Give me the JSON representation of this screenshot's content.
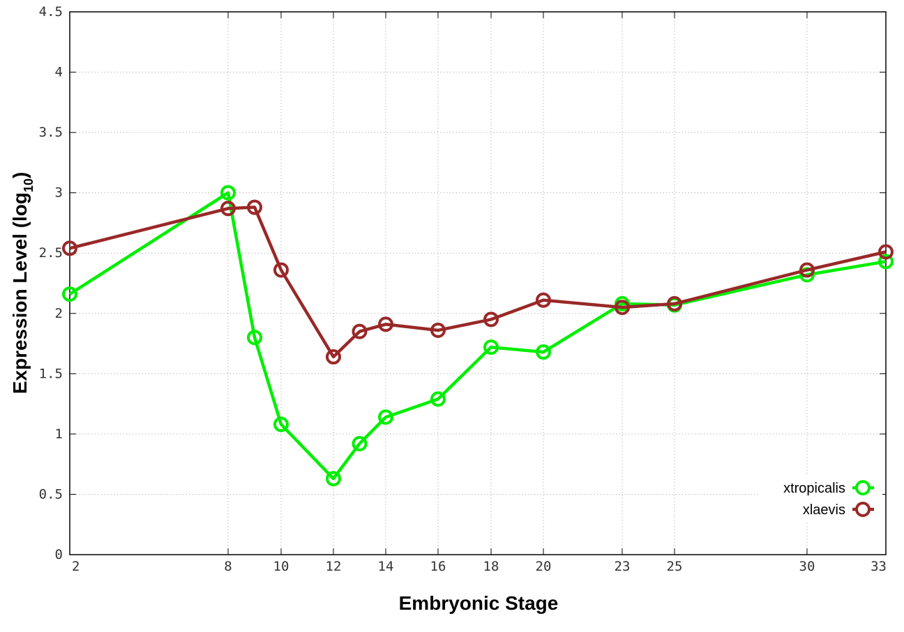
{
  "chart_data": {
    "type": "line",
    "title": "",
    "xlabel": "Embryonic Stage",
    "ylabel_main": "Expression Level (log",
    "ylabel_sub": "10",
    "ylabel_close": ")",
    "x": [
      2,
      8,
      9,
      10,
      12,
      13,
      14,
      16,
      18,
      20,
      23,
      25,
      30,
      33
    ],
    "x_tick_labels": [
      "2",
      "8",
      "10",
      "12",
      "14",
      "16",
      "18",
      "20",
      "23",
      "25",
      "30",
      "33"
    ],
    "y_tick_labels": [
      "0",
      "0.5",
      "1",
      "1.5",
      "2",
      "2.5",
      "3",
      "3.5",
      "4",
      "4.5"
    ],
    "ylim": [
      0,
      4.5
    ],
    "grid": true,
    "legend_position": "bottom-right",
    "series": [
      {
        "name": "xtropicalis",
        "color": "#00ee00",
        "values": [
          2.16,
          3.0,
          1.8,
          1.08,
          0.63,
          0.92,
          1.14,
          1.29,
          1.72,
          1.68,
          2.08,
          2.07,
          2.32,
          2.43
        ]
      },
      {
        "name": "xlaevis",
        "color": "#992828",
        "values": [
          2.54,
          2.87,
          2.88,
          2.36,
          1.64,
          1.85,
          1.91,
          1.86,
          1.95,
          2.11,
          2.05,
          2.08,
          2.36,
          2.51
        ]
      }
    ]
  }
}
